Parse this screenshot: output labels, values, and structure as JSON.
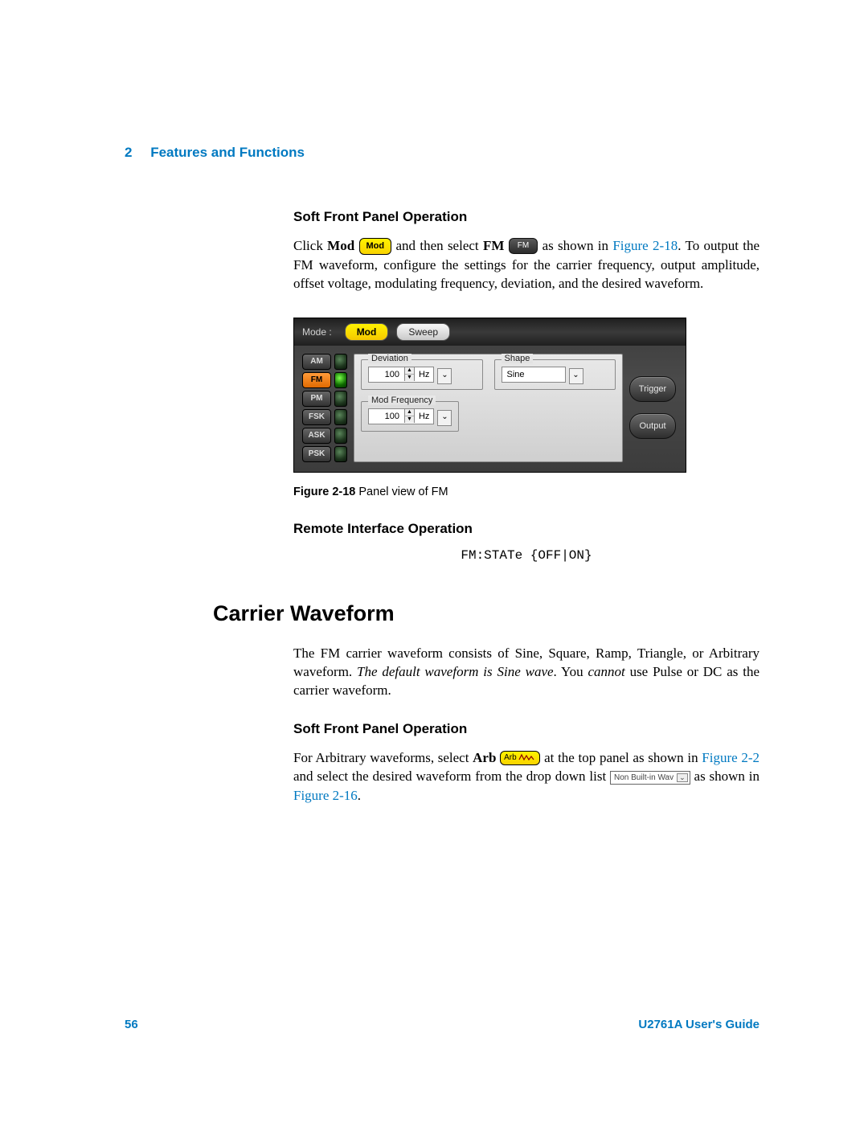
{
  "chapter": {
    "num": "2",
    "title": "Features and Functions"
  },
  "section1": {
    "heading": "Soft Front Panel Operation",
    "p1_a": "Click ",
    "p1_b": "Mod",
    "mod_btn": "Mod",
    "p1_c": " and then select ",
    "p1_d": "FM",
    "fm_btn": "FM",
    "p1_e": " as shown in ",
    "p1_link": "Figure 2-18",
    "p1_f": ". To output the FM waveform, configure the settings for the carrier frequency, output amplitude, offset voltage, modulating frequency, deviation, and the desired waveform."
  },
  "figure": {
    "mode_label": "Mode :",
    "tab_mod": "Mod",
    "tab_sweep": "Sweep",
    "mods": [
      "AM",
      "FM",
      "PM",
      "FSK",
      "ASK",
      "PSK"
    ],
    "active_mod_index": 1,
    "deviation_label": "Deviation",
    "deviation_value": "100",
    "deviation_unit": "Hz",
    "shape_label": "Shape",
    "shape_value": "Sine",
    "modfreq_label": "Mod Frequency",
    "modfreq_value": "100",
    "modfreq_unit": "Hz",
    "btn_trigger": "Trigger",
    "btn_output": "Output",
    "caption_b": "Figure 2-18",
    "caption_t": "  Panel view of FM"
  },
  "remote": {
    "heading": "Remote Interface Operation",
    "code": "FM:STATe {OFF|ON}"
  },
  "carrier": {
    "heading": "Carrier Waveform",
    "p_a": "The FM carrier waveform consists of Sine, Square, Ramp, Triangle, or Arbitrary waveform. ",
    "p_ital": "The default waveform is Sine wave",
    "p_b": ". You ",
    "p_ital2": "cannot",
    "p_c": " use Pulse or DC as the carrier waveform."
  },
  "section2": {
    "heading": "Soft Front Panel Operation",
    "p_a": "For Arbitrary waveforms, select ",
    "p_b": "Arb",
    "arb_btn": "Arb",
    "p_c": " at the top panel as shown in ",
    "p_link1": "Figure 2-2",
    "p_d": " and select the desired waveform from the drop down list ",
    "dd_text": "Non Built-in Wav",
    "p_e": " as shown in ",
    "p_link2": "Figure 2-16",
    "p_f": "."
  },
  "footer": {
    "page": "56",
    "guide": "U2761A User's Guide"
  },
  "colors": {
    "link": "#0079c1",
    "accent_yellow": "#f9d300",
    "panel_dark": "#3b3b3b"
  }
}
